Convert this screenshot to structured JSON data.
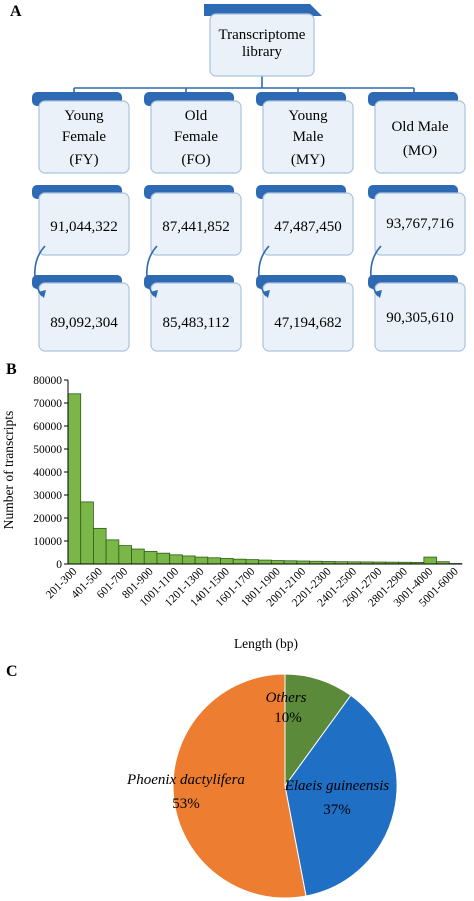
{
  "panelA": {
    "letter": "A",
    "root": [
      "Transcriptome",
      "library"
    ],
    "groups": [
      {
        "name": [
          "Young",
          "Female",
          "(FY)"
        ],
        "raw": "91,044,322",
        "clean": "89,092,304"
      },
      {
        "name": [
          "Old",
          "Female",
          "(FO)"
        ],
        "raw": "87,441,852",
        "clean": "85,483,112"
      },
      {
        "name": [
          "Young",
          "Male",
          "(MY)"
        ],
        "raw": "47,487,450",
        "clean": "47,194,682"
      },
      {
        "name": [
          "Old Male",
          "(MO)"
        ],
        "raw": "93,767,716",
        "clean": "90,305,610"
      }
    ],
    "colors": {
      "accent": "#2e6ab3",
      "box_fill": "#eaf1f9",
      "box_border": "#aac3e0"
    }
  },
  "panelB": {
    "letter": "B",
    "bar_color": "#7ab648",
    "bar_border": "#2f5d14"
  },
  "chart_data": [
    {
      "type": "bar",
      "xlabel": "Length (bp)",
      "ylabel": "Number of transcripts",
      "ylim": [
        0,
        80000
      ],
      "yticks": [
        "0",
        "10000",
        "20000",
        "30000",
        "40000",
        "50000",
        "60000",
        "70000",
        "80000"
      ],
      "categories": [
        "201-300",
        "301-400",
        "401-500",
        "501-600",
        "601-700",
        "701-800",
        "801-900",
        "901-1000",
        "1001-1100",
        "1101-1200",
        "1201-1300",
        "1301-1400",
        "1401-1500",
        "1501-1600",
        "1601-1700",
        "1701-1800",
        "1801-1900",
        "1901-2000",
        "2001-2100",
        "2101-2200",
        "2201-2300",
        "2301-2400",
        "2401-2500",
        "2501-2600",
        "2601-2700",
        "2701-2800",
        "2801-2900",
        "2901-3000",
        "3001-4000",
        "4001-5000",
        "5001-6000"
      ],
      "tick_labels": [
        "201-300",
        "401-500",
        "601-700",
        "801-900",
        "1001-1100",
        "1201-1300",
        "1401-1500",
        "1601-1700",
        "1801-1900",
        "2001-2100",
        "2201-2300",
        "2401-2500",
        "2601-2700",
        "2801-2900",
        "3001-4000",
        "5001-6000"
      ],
      "values": [
        74000,
        27000,
        15500,
        10500,
        8000,
        6500,
        5500,
        4700,
        4000,
        3500,
        3000,
        2700,
        2400,
        2100,
        1900,
        1700,
        1500,
        1400,
        1300,
        1200,
        1100,
        1000,
        950,
        900,
        850,
        800,
        750,
        700,
        3000,
        1000,
        200
      ]
    },
    {
      "type": "pie",
      "letter": "C",
      "slices": [
        {
          "label": "Others",
          "pct": "10%",
          "value": 10,
          "color": "#5a8a3a"
        },
        {
          "label": "Elaeis guineensis",
          "pct": "37%",
          "value": 37,
          "color": "#1f6fc4"
        },
        {
          "label": "Phoenix dactylifera",
          "pct": "53%",
          "value": 53,
          "color": "#ed7d31"
        }
      ]
    }
  ]
}
